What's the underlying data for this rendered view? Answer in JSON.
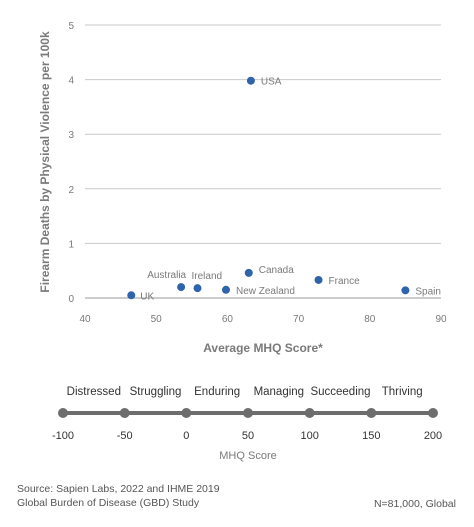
{
  "chart_data": {
    "type": "scatter",
    "xlabel": "Average MHQ Score*",
    "ylabel": "Firearm Deaths by Physical Violence per 100k",
    "xlim": [
      40,
      90
    ],
    "ylim": [
      0,
      5
    ],
    "xticks": [
      40,
      50,
      60,
      70,
      80,
      90
    ],
    "yticks": [
      0,
      1,
      2,
      3,
      4,
      5
    ],
    "grid": "horizontal",
    "point_color": "#2f64ad",
    "points": [
      {
        "label": "UK",
        "x": 46.5,
        "y": 0.05
      },
      {
        "label": "Australia",
        "x": 53.5,
        "y": 0.2
      },
      {
        "label": "Ireland",
        "x": 55.8,
        "y": 0.18
      },
      {
        "label": "New Zealand",
        "x": 59.8,
        "y": 0.15
      },
      {
        "label": "Canada",
        "x": 63.0,
        "y": 0.46
      },
      {
        "label": "USA",
        "x": 63.3,
        "y": 3.98
      },
      {
        "label": "France",
        "x": 72.8,
        "y": 0.33
      },
      {
        "label": "Spain",
        "x": 85.0,
        "y": 0.14
      }
    ]
  },
  "scale": {
    "title": "MHQ Score",
    "ticks": [
      -100,
      -50,
      0,
      50,
      100,
      150,
      200
    ],
    "categories": [
      "Distressed",
      "Struggling",
      "Enduring",
      "Managing",
      "Succeeding",
      "Thriving"
    ],
    "color": "#6d6d6d"
  },
  "footer": {
    "source_line1": "Source: Sapien Labs, 2022 and IHME 2019",
    "source_line2": "Global Burden of Disease (GBD) Study",
    "sample": "N=81,000, Global"
  }
}
